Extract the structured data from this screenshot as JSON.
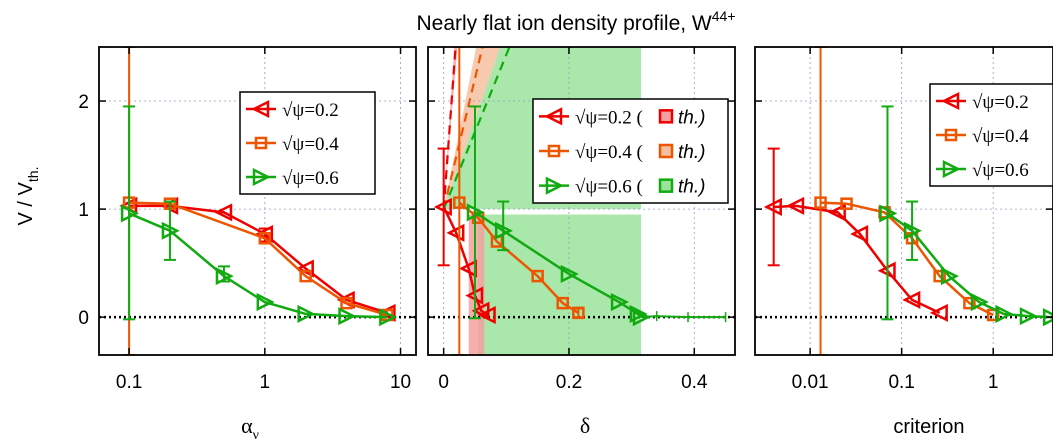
{
  "figure_title": "Nearly flat ion density profile, W",
  "figure_title_sup": "44+",
  "ylabel_main": "V / V",
  "ylabel_sub": "th.",
  "colors": {
    "series02": "#ee0000",
    "series04": "#ee5500",
    "series06": "#11aa11",
    "zero_line": "#000000",
    "grid": "#9999cc",
    "band02": "#f4a0a0",
    "band04": "#f6c0a0",
    "band06": "#9be39b"
  },
  "chart_data": [
    {
      "type": "line",
      "panel": "alpha",
      "xscale": "log",
      "xlim": [
        0.06,
        13
      ],
      "ylim": [
        -0.35,
        2.5
      ],
      "xticks": [
        0.1,
        1,
        10
      ],
      "xtick_labels": [
        "0.1",
        "1",
        "10"
      ],
      "yticks": [
        0,
        1,
        2
      ],
      "ytick_labels": [
        "0",
        "1",
        "2"
      ],
      "xlabel": "α",
      "xlabel_sub": "ν",
      "grid": true,
      "legend_position": "top-right",
      "series": [
        {
          "name": "√ψ=0.2",
          "marker": "triangle-left",
          "color": "#ee0000",
          "x": [
            0.1,
            0.2,
            0.5,
            1,
            2,
            4,
            8
          ],
          "y": [
            1.03,
            1.03,
            0.97,
            0.77,
            0.45,
            0.16,
            0.04
          ],
          "err": [
            null,
            null,
            null,
            [
              0.7,
              0.82
            ],
            null,
            null,
            null
          ]
        },
        {
          "name": "√ψ=0.4",
          "marker": "square",
          "color": "#ee5500",
          "x": [
            0.1,
            0.2,
            1,
            2,
            4,
            8
          ],
          "y": [
            1.06,
            1.05,
            0.73,
            0.38,
            0.13,
            0.02
          ],
          "err": [
            [
              -0.35,
              2.5
            ],
            null,
            null,
            null,
            null,
            null
          ]
        },
        {
          "name": "√ψ=0.6",
          "marker": "triangle-right",
          "color": "#11aa11",
          "x": [
            0.1,
            0.2,
            0.5,
            1,
            2,
            4,
            8
          ],
          "y": [
            0.96,
            0.8,
            0.38,
            0.14,
            0.03,
            0.01,
            0.0
          ],
          "err": [
            [
              -0.02,
              1.95
            ],
            [
              0.53,
              1.07
            ],
            [
              0.33,
              0.47
            ],
            null,
            null,
            null,
            null
          ]
        }
      ]
    },
    {
      "type": "line",
      "panel": "delta",
      "xscale": "linear",
      "xlim": [
        -0.025,
        0.465
      ],
      "ylim": [
        -0.35,
        2.5
      ],
      "xticks": [
        0,
        0.2,
        0.4
      ],
      "xtick_labels": [
        "0",
        "0.2",
        "0.4"
      ],
      "yticks": [
        0,
        1,
        2
      ],
      "xlabel": "δ",
      "grid": true,
      "legend_position": "top-right",
      "legend_th_label": "th.",
      "series": [
        {
          "name": "√ψ=0.2 (",
          "marker": "triangle-left",
          "color": "#ee0000",
          "x": [
            0.0,
            0.02,
            0.04,
            0.05,
            0.06,
            0.07
          ],
          "y": [
            1.02,
            0.78,
            0.45,
            0.2,
            0.06,
            0.02
          ],
          "err": [
            [
              0.48,
              1.56
            ],
            null,
            null,
            null,
            null,
            null
          ]
        },
        {
          "name": "√ψ=0.4 (",
          "marker": "square",
          "color": "#ee5500",
          "x": [
            0.025,
            0.055,
            0.085,
            0.15,
            0.19,
            0.215
          ],
          "y": [
            1.06,
            0.92,
            0.7,
            0.38,
            0.13,
            0.04
          ],
          "err": [
            [
              -0.35,
              2.5
            ],
            null,
            null,
            null,
            null,
            [
              0.0,
              0.08
            ]
          ]
        },
        {
          "name": "√ψ=0.6 (",
          "marker": "triangle-right",
          "color": "#11aa11",
          "x": [
            0.05,
            0.095,
            0.2,
            0.28,
            0.31,
            0.315
          ],
          "y": [
            0.97,
            0.8,
            0.4,
            0.14,
            0.03,
            0.0
          ],
          "err": [
            [
              -0.01,
              1.95
            ],
            [
              0.62,
              1.07
            ],
            null,
            null,
            null,
            null
          ],
          "tail_x": [
            0.315,
            0.34,
            0.39,
            0.45
          ],
          "tail_y": [
            0.0,
            0.01,
            0.0,
            0.0
          ]
        }
      ],
      "th_bands": [
        {
          "series": "√ψ=0.2",
          "color": "#f4a0a0",
          "rect": [
            0.04,
            0.065,
            -0.35,
            0.95
          ],
          "cone": [
            [
              0.0,
              1.0
            ],
            [
              0.017,
              2.5
            ],
            [
              0.022,
              2.5
            ]
          ],
          "dash": [
            [
              0.0,
              1.0
            ],
            [
              0.019,
              2.5
            ]
          ]
        },
        {
          "series": "√ψ=0.4",
          "color": "#f6c0a0",
          "cone": [
            [
              0.0,
              1.0
            ],
            [
              0.052,
              2.5
            ],
            [
              0.09,
              2.5
            ]
          ],
          "dash": [
            [
              0.0,
              1.0
            ],
            [
              0.062,
              2.5
            ]
          ]
        },
        {
          "series": "√ψ=0.6",
          "color": "#9be39b",
          "rect": [
            0.055,
            0.315,
            -0.35,
            0.95
          ],
          "cone": [
            [
              0.0,
              1.0
            ],
            [
              0.09,
              2.5
            ],
            [
              0.315,
              2.5
            ],
            [
              0.315,
              1.0
            ]
          ],
          "dash": [
            [
              0.0,
              1.0
            ],
            [
              0.105,
              2.5
            ]
          ]
        }
      ]
    },
    {
      "type": "line",
      "panel": "criterion",
      "xscale": "log",
      "xlim": [
        0.0025,
        4.5
      ],
      "ylim": [
        -0.35,
        2.5
      ],
      "xticks": [
        0.01,
        0.1,
        1
      ],
      "xtick_labels": [
        "0.01",
        "0.1",
        "1"
      ],
      "yticks": [
        0,
        1,
        2
      ],
      "xlabel": "criterion",
      "grid": true,
      "legend_position": "top-right",
      "series": [
        {
          "name": "√ψ=0.2",
          "marker": "triangle-left",
          "color": "#ee0000",
          "x": [
            0.004,
            0.007,
            0.02,
            0.035,
            0.07,
            0.13,
            0.26
          ],
          "y": [
            1.02,
            1.03,
            0.97,
            0.77,
            0.43,
            0.16,
            0.04
          ],
          "err": [
            [
              0.48,
              1.56
            ],
            null,
            null,
            null,
            null,
            null,
            null
          ]
        },
        {
          "name": "√ψ=0.4",
          "marker": "square",
          "color": "#ee5500",
          "x": [
            0.013,
            0.025,
            0.065,
            0.13,
            0.26,
            0.55,
            1.0
          ],
          "y": [
            1.06,
            1.05,
            0.97,
            0.73,
            0.38,
            0.13,
            0.02
          ],
          "err": [
            [
              -0.35,
              2.5
            ],
            null,
            null,
            null,
            null,
            null,
            null
          ]
        },
        {
          "name": "√ψ=0.6",
          "marker": "triangle-right",
          "color": "#11aa11",
          "x": [
            0.07,
            0.13,
            0.33,
            0.7,
            1.3,
            2.4,
            4.3
          ],
          "y": [
            0.96,
            0.8,
            0.38,
            0.14,
            0.03,
            0.01,
            0.0
          ],
          "err": [
            [
              -0.02,
              1.95
            ],
            [
              0.53,
              1.07
            ],
            null,
            null,
            null,
            null,
            null
          ]
        }
      ]
    }
  ]
}
